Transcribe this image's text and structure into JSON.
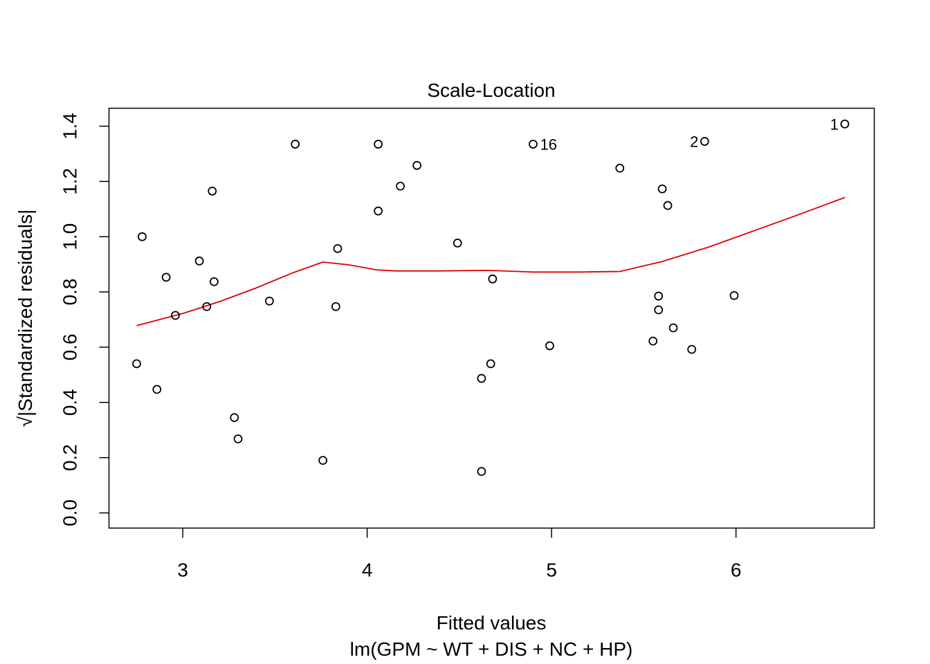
{
  "chart_data": {
    "type": "scatter",
    "title": "Scale-Location",
    "xlabel": "Fitted values",
    "subtitle": "lm(GPM ~ WT + DIS + NC + HP)",
    "ylabel": "√|Standardized residuals|",
    "xlim": [
      2.6,
      6.75
    ],
    "ylim": [
      -0.055,
      1.465
    ],
    "x_ticks": [
      3,
      4,
      5,
      6
    ],
    "y_ticks": [
      0.0,
      0.2,
      0.4,
      0.6,
      0.8,
      1.0,
      1.2,
      1.4
    ],
    "x_tick_labels": [
      "3",
      "4",
      "5",
      "6"
    ],
    "y_tick_labels": [
      "0.0",
      "0.2",
      "0.4",
      "0.6",
      "0.8",
      "1.0",
      "1.2",
      "1.4"
    ],
    "grid": false,
    "legend": "none",
    "point_color": "#000000",
    "smooth_color": "#dd0000",
    "points": [
      {
        "x": 2.75,
        "y": 0.54
      },
      {
        "x": 2.78,
        "y": 1.0
      },
      {
        "x": 2.86,
        "y": 0.447
      },
      {
        "x": 2.91,
        "y": 0.853
      },
      {
        "x": 2.96,
        "y": 0.715
      },
      {
        "x": 3.09,
        "y": 0.912
      },
      {
        "x": 3.13,
        "y": 0.747
      },
      {
        "x": 3.16,
        "y": 1.165
      },
      {
        "x": 3.17,
        "y": 0.837
      },
      {
        "x": 3.28,
        "y": 0.345
      },
      {
        "x": 3.3,
        "y": 0.268
      },
      {
        "x": 3.47,
        "y": 0.767
      },
      {
        "x": 3.61,
        "y": 1.335
      },
      {
        "x": 3.76,
        "y": 0.19
      },
      {
        "x": 3.83,
        "y": 0.747
      },
      {
        "x": 3.84,
        "y": 0.957
      },
      {
        "x": 4.06,
        "y": 1.335
      },
      {
        "x": 4.06,
        "y": 1.093
      },
      {
        "x": 4.18,
        "y": 1.183
      },
      {
        "x": 4.27,
        "y": 1.258
      },
      {
        "x": 4.49,
        "y": 0.977
      },
      {
        "x": 4.62,
        "y": 0.15
      },
      {
        "x": 4.62,
        "y": 0.487
      },
      {
        "x": 4.67,
        "y": 0.54
      },
      {
        "x": 4.68,
        "y": 0.847
      },
      {
        "x": 4.9,
        "y": 1.335,
        "label": "16"
      },
      {
        "x": 4.99,
        "y": 0.605
      },
      {
        "x": 5.37,
        "y": 1.248
      },
      {
        "x": 5.55,
        "y": 0.622
      },
      {
        "x": 5.58,
        "y": 0.785
      },
      {
        "x": 5.58,
        "y": 0.735
      },
      {
        "x": 5.6,
        "y": 1.173
      },
      {
        "x": 5.63,
        "y": 1.113
      },
      {
        "x": 5.66,
        "y": 0.67
      },
      {
        "x": 5.76,
        "y": 0.592
      },
      {
        "x": 5.83,
        "y": 1.345,
        "label": "2"
      },
      {
        "x": 5.99,
        "y": 0.787
      },
      {
        "x": 6.59,
        "y": 1.408,
        "label": "1"
      }
    ],
    "smooth": {
      "x": [
        2.75,
        3.0,
        3.2,
        3.4,
        3.6,
        3.76,
        3.9,
        4.05,
        4.15,
        4.4,
        4.65,
        4.9,
        5.15,
        5.37,
        5.6,
        5.85,
        6.0,
        6.3,
        6.59
      ],
      "y": [
        0.678,
        0.722,
        0.765,
        0.815,
        0.87,
        0.908,
        0.898,
        0.88,
        0.876,
        0.876,
        0.878,
        0.872,
        0.872,
        0.874,
        0.91,
        0.962,
        0.998,
        1.07,
        1.142
      ]
    }
  }
}
